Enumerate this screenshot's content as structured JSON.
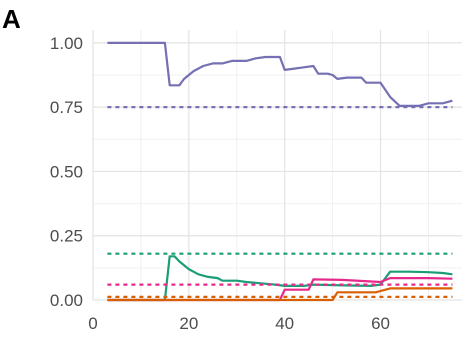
{
  "panel_label": "A",
  "chart_data": {
    "type": "line",
    "title": "",
    "xlabel": "",
    "ylabel": "",
    "xlim": [
      0,
      77
    ],
    "ylim": [
      0,
      1.05
    ],
    "x_ticks": [
      0,
      20,
      40,
      60
    ],
    "x_tick_labels": [
      "0",
      "20",
      "40",
      "60"
    ],
    "y_ticks": [
      0,
      0.25,
      0.5,
      0.75,
      1.0
    ],
    "y_tick_labels": [
      "0.00",
      "0.25",
      "0.50",
      "0.75",
      "1.00"
    ],
    "grid": true,
    "legend": "none",
    "series": [
      {
        "color": "#7570b3",
        "style": "solid",
        "points": [
          [
            3,
            1.0
          ],
          [
            15,
            1.0
          ],
          [
            16,
            0.835
          ],
          [
            18,
            0.835
          ],
          [
            19,
            0.86
          ],
          [
            21,
            0.89
          ],
          [
            23,
            0.91
          ],
          [
            25,
            0.92
          ],
          [
            27,
            0.92
          ],
          [
            29,
            0.93
          ],
          [
            32,
            0.93
          ],
          [
            34,
            0.94
          ],
          [
            36,
            0.945
          ],
          [
            39,
            0.945
          ],
          [
            40,
            0.895
          ],
          [
            42,
            0.9
          ],
          [
            44,
            0.905
          ],
          [
            46,
            0.91
          ],
          [
            47,
            0.88
          ],
          [
            49,
            0.88
          ],
          [
            50,
            0.875
          ],
          [
            51,
            0.86
          ],
          [
            53,
            0.865
          ],
          [
            56,
            0.865
          ],
          [
            57,
            0.845
          ],
          [
            60,
            0.845
          ],
          [
            62,
            0.79
          ],
          [
            64,
            0.755
          ],
          [
            68,
            0.755
          ],
          [
            70,
            0.765
          ],
          [
            73,
            0.765
          ],
          [
            75,
            0.775
          ]
        ]
      },
      {
        "color": "#7570b3",
        "style": "dashed",
        "points": [
          [
            3,
            0.75
          ],
          [
            75,
            0.75
          ]
        ]
      },
      {
        "color": "#1b9e77",
        "style": "solid",
        "points": [
          [
            3,
            0.0
          ],
          [
            15,
            0.0
          ],
          [
            16,
            0.17
          ],
          [
            17,
            0.17
          ],
          [
            18,
            0.15
          ],
          [
            20,
            0.12
          ],
          [
            22,
            0.1
          ],
          [
            24,
            0.09
          ],
          [
            26,
            0.085
          ],
          [
            27,
            0.075
          ],
          [
            30,
            0.075
          ],
          [
            32,
            0.07
          ],
          [
            35,
            0.065
          ],
          [
            38,
            0.06
          ],
          [
            40,
            0.055
          ],
          [
            44,
            0.055
          ],
          [
            46,
            0.06
          ],
          [
            50,
            0.058
          ],
          [
            55,
            0.056
          ],
          [
            58,
            0.055
          ],
          [
            60,
            0.06
          ],
          [
            62,
            0.11
          ],
          [
            66,
            0.11
          ],
          [
            70,
            0.108
          ],
          [
            73,
            0.105
          ],
          [
            75,
            0.1
          ]
        ]
      },
      {
        "color": "#1b9e77",
        "style": "dashed",
        "points": [
          [
            3,
            0.18
          ],
          [
            75,
            0.18
          ]
        ]
      },
      {
        "color": "#e7298a",
        "style": "solid",
        "points": [
          [
            3,
            0.0
          ],
          [
            39,
            0.0
          ],
          [
            40,
            0.04
          ],
          [
            45,
            0.04
          ],
          [
            46,
            0.08
          ],
          [
            52,
            0.078
          ],
          [
            60,
            0.07
          ],
          [
            62,
            0.085
          ],
          [
            70,
            0.085
          ],
          [
            75,
            0.083
          ]
        ]
      },
      {
        "color": "#e7298a",
        "style": "dashed",
        "points": [
          [
            3,
            0.06
          ],
          [
            75,
            0.06
          ]
        ]
      },
      {
        "color": "#d95f02",
        "style": "solid",
        "points": [
          [
            3,
            0.0
          ],
          [
            50,
            0.0
          ],
          [
            51,
            0.03
          ],
          [
            59,
            0.03
          ],
          [
            60,
            0.035
          ],
          [
            62,
            0.045
          ],
          [
            75,
            0.045
          ]
        ]
      },
      {
        "color": "#d95f02",
        "style": "dashed",
        "points": [
          [
            3,
            0.012
          ],
          [
            75,
            0.012
          ]
        ]
      }
    ]
  }
}
